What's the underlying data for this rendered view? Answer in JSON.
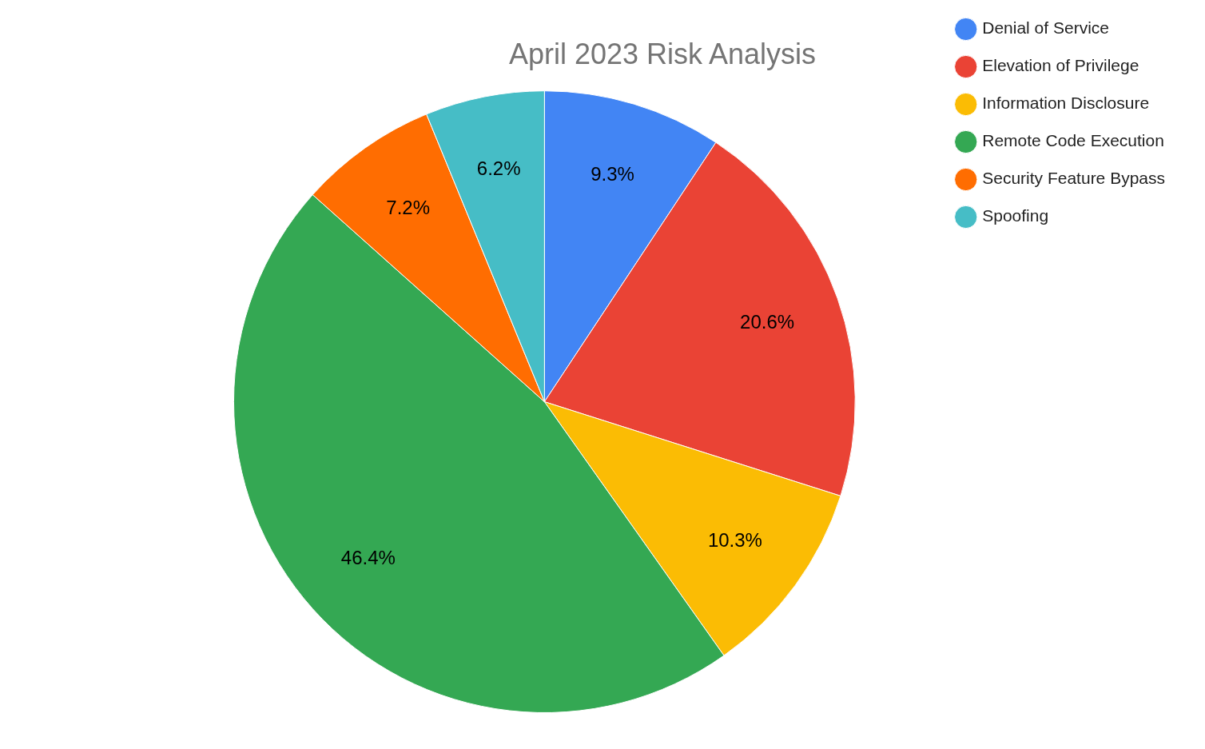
{
  "chart_data": {
    "type": "pie",
    "title": "April 2023 Risk Analysis",
    "categories": [
      "Denial of Service",
      "Elevation of Privilege",
      "Information Disclosure",
      "Remote Code Execution",
      "Security Feature Bypass",
      "Spoofing"
    ],
    "values": [
      9.3,
      20.6,
      10.3,
      46.4,
      7.2,
      6.2
    ],
    "colors": [
      "#4285f4",
      "#ea4335",
      "#fbbc04",
      "#34a853",
      "#ff6d01",
      "#46bdc6"
    ],
    "value_labels": [
      "9.3%",
      "20.6%",
      "10.3%",
      "46.4%",
      "7.2%",
      "6.2%"
    ],
    "legend": "top right"
  }
}
